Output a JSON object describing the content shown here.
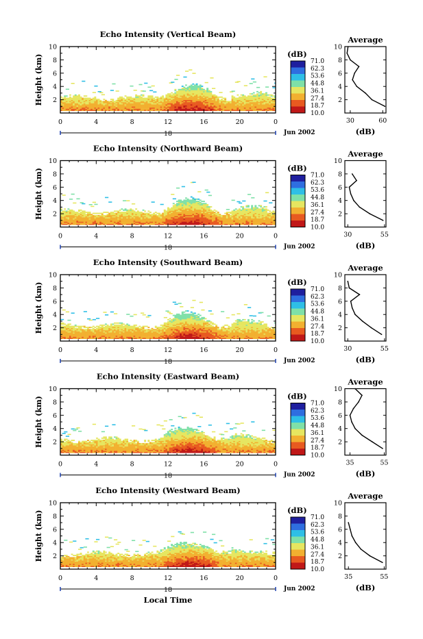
{
  "colorbar": {
    "unit_label": "(dB)",
    "levels": [
      "71.0",
      "62.3",
      "53.6",
      "44.8",
      "36.1",
      "27.4",
      "18.7",
      "10.0"
    ],
    "colors": [
      "#1f1f9e",
      "#2f6ee0",
      "#2fbfe6",
      "#7fe0a8",
      "#e6e660",
      "#f2b030",
      "#e85a20",
      "#c01818"
    ]
  },
  "x_axis": {
    "ticks": [
      "0",
      "4",
      "8",
      "12",
      "16",
      "20",
      "0"
    ],
    "date_marker": "18",
    "date_label": "Jun 2002",
    "xlabel": "Local Time"
  },
  "profile_title": "Average",
  "profile_xlabel": "(dB)",
  "chart_data": [
    {
      "type": "heatmap",
      "title": "Echo Intensity (Vertical Beam)",
      "xlabel": "",
      "ylabel": "Height (km)",
      "xlim": [
        0,
        24
      ],
      "ylim": [
        0,
        10
      ],
      "yticks": [
        "2",
        "4",
        "6",
        "8",
        "10"
      ],
      "colorbar_range": [
        10.0,
        71.0
      ],
      "profile": {
        "title": "Average",
        "xlabel": "(dB)",
        "xticks": [
          "30",
          "60"
        ],
        "xlim": [
          25,
          63
        ],
        "heights": [
          1,
          2,
          3,
          4,
          5,
          6,
          7,
          8,
          9,
          10
        ],
        "values": [
          62,
          50,
          44,
          36,
          32,
          34,
          38,
          30,
          27,
          28
        ]
      }
    },
    {
      "type": "heatmap",
      "title": "Echo Intensity (Northward Beam)",
      "xlabel": "",
      "ylabel": "Height (km)",
      "xlim": [
        0,
        24
      ],
      "ylim": [
        0,
        10
      ],
      "yticks": [
        "2",
        "4",
        "6",
        "8",
        "10"
      ],
      "colorbar_range": [
        10.0,
        71.0
      ],
      "profile": {
        "title": "Average",
        "xlabel": "(dB)",
        "xticks": [
          "30",
          "55"
        ],
        "xlim": [
          28,
          56
        ],
        "heights": [
          1,
          2,
          3,
          4,
          5,
          6,
          7,
          8
        ],
        "values": [
          54,
          45,
          38,
          34,
          32,
          31,
          36,
          33
        ]
      }
    },
    {
      "type": "heatmap",
      "title": "Echo Intensity (Southward Beam)",
      "xlabel": "",
      "ylabel": "Height (km)",
      "xlim": [
        0,
        24
      ],
      "ylim": [
        0,
        10
      ],
      "yticks": [
        "2",
        "4",
        "6",
        "8",
        "10"
      ],
      "colorbar_range": [
        10.0,
        71.0
      ],
      "profile": {
        "title": "Average",
        "xlabel": "(dB)",
        "xticks": [
          "30",
          "55"
        ],
        "xlim": [
          28,
          56
        ],
        "heights": [
          1,
          2,
          3,
          4,
          5,
          6,
          7,
          8,
          9
        ],
        "values": [
          53,
          46,
          40,
          35,
          33,
          32,
          38,
          31,
          30
        ]
      }
    },
    {
      "type": "heatmap",
      "title": "Echo Intensity (Eastward Beam)",
      "xlabel": "",
      "ylabel": "Height (km)",
      "xlim": [
        0,
        24
      ],
      "ylim": [
        0,
        10
      ],
      "yticks": [
        "2",
        "4",
        "6",
        "8",
        "10"
      ],
      "colorbar_range": [
        10.0,
        71.0
      ],
      "profile": {
        "title": "Average",
        "xlabel": "(dB)",
        "xticks": [
          "35",
          "55"
        ],
        "xlim": [
          32,
          56
        ],
        "heights": [
          1,
          2,
          3,
          4,
          5,
          6,
          7,
          8,
          9,
          10
        ],
        "values": [
          54,
          48,
          42,
          38,
          36,
          35,
          37,
          40,
          42,
          38
        ]
      }
    },
    {
      "type": "heatmap",
      "title": "Echo Intensity (Westward Beam)",
      "xlabel": "Local Time",
      "ylabel": "Height (km)",
      "xlim": [
        0,
        24
      ],
      "ylim": [
        0,
        10
      ],
      "yticks": [
        "2",
        "4",
        "6",
        "8",
        "10"
      ],
      "colorbar_range": [
        10.0,
        71.0
      ],
      "profile": {
        "title": "Average",
        "xlabel": "(dB)",
        "xticks": [
          "35",
          "55"
        ],
        "xlim": [
          33,
          56
        ],
        "heights": [
          1,
          2,
          3,
          4,
          5,
          6,
          7
        ],
        "values": [
          54,
          47,
          42,
          39,
          37,
          36,
          35
        ]
      }
    }
  ]
}
